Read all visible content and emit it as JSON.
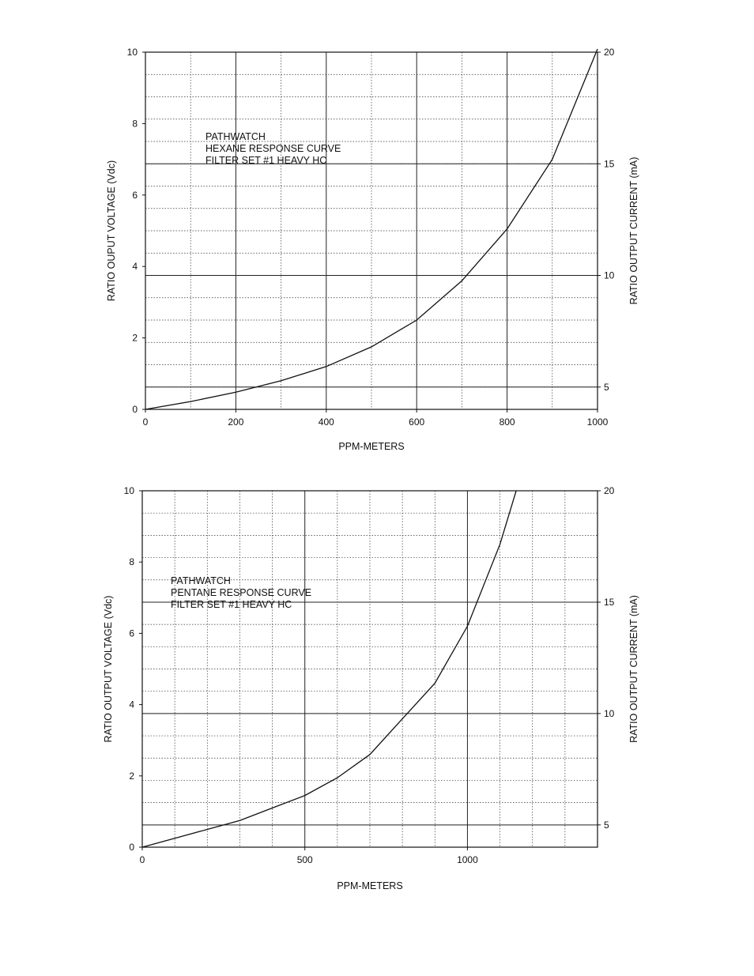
{
  "chart_data": [
    {
      "type": "line",
      "title": "",
      "annotation": [
        "PATHWATCH",
        "HEXANE RESPONSE CURVE",
        "FILTER SET #1 HEAVY HC"
      ],
      "xlabel": "PPM-METERS",
      "ylabel": "RATIO OUPUT VOLTAGE (Vdc)",
      "y2label": "RATIO OUTPUT CURRENT (mA)",
      "xlim": [
        0,
        1000
      ],
      "ylim": [
        0,
        10
      ],
      "y2lim": [
        4,
        20
      ],
      "x_ticks": [
        0,
        200,
        400,
        600,
        800,
        1000
      ],
      "x_tick_labels": [
        "0",
        "200",
        "400",
        "600",
        "800",
        "1000"
      ],
      "y_ticks": [
        0,
        2,
        4,
        6,
        8,
        10
      ],
      "y_tick_labels": [
        "0",
        "2",
        "4",
        "6",
        "8",
        "10"
      ],
      "y2_ticks": [
        5,
        10,
        15,
        20
      ],
      "y2_tick_labels": [
        "5",
        "10",
        "15",
        "20"
      ],
      "x_minor_step": 100,
      "y_minor_step": 0.625,
      "grid": true,
      "series": [
        {
          "x": [
            0,
            100,
            200,
            300,
            400,
            500,
            600,
            700,
            800,
            900,
            1000
          ],
          "y": [
            0,
            0.22,
            0.48,
            0.8,
            1.2,
            1.75,
            2.5,
            3.6,
            5.05,
            7.0,
            10.2
          ]
        }
      ]
    },
    {
      "type": "line",
      "title": "",
      "annotation": [
        "PATHWATCH",
        "PENTANE RESPONSE CURVE",
        "FILTER SET #1 HEAVY HC"
      ],
      "xlabel": "PPM-METERS",
      "ylabel": "RATIO OUTPUT VOLTAGE (Vdc)",
      "y2label": "RATIO OUTPUT CURRENT (mA)",
      "xlim": [
        0,
        1400
      ],
      "ylim": [
        0,
        10
      ],
      "y2lim": [
        4,
        20
      ],
      "x_ticks": [
        0,
        500,
        1000
      ],
      "x_tick_labels": [
        "0",
        "500",
        "1000"
      ],
      "y_ticks": [
        0,
        2,
        4,
        6,
        8,
        10
      ],
      "y_tick_labels": [
        "0",
        "2",
        "4",
        "6",
        "8",
        "10"
      ],
      "y2_ticks": [
        5,
        10,
        15,
        20
      ],
      "y2_tick_labels": [
        "5",
        "10",
        "15",
        "20"
      ],
      "x_minor_step": 100,
      "y_minor_step": 0.625,
      "grid": true,
      "series": [
        {
          "x": [
            0,
            100,
            200,
            300,
            400,
            500,
            600,
            700,
            800,
            900,
            1000,
            1100,
            1150
          ],
          "y": [
            0,
            0.25,
            0.5,
            0.75,
            1.1,
            1.45,
            1.95,
            2.6,
            3.6,
            4.6,
            6.2,
            8.5,
            10.0
          ]
        }
      ]
    }
  ]
}
